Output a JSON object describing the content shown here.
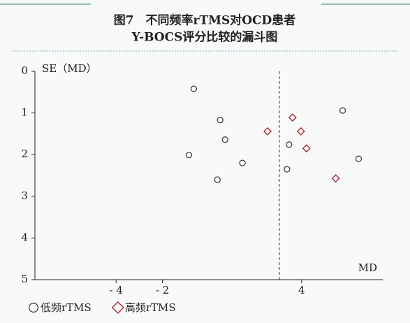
{
  "chart_data": {
    "type": "scatter",
    "title": "图7　不同频率rTMS对OCD患者",
    "subtitle": "Y-BOCS评分比较的漏斗图",
    "y_label": "SE（MD）",
    "x_label": "MD",
    "xlim": [
      -7.5,
      7.5
    ],
    "xticks": [
      {
        "value": -4,
        "label": "- 4"
      },
      {
        "value": -2,
        "label": "- 2"
      },
      4
    ],
    "ylim": [
      0,
      5
    ],
    "yticks": [
      0,
      1,
      2,
      3,
      4,
      5
    ],
    "y_reversed": true,
    "ref_line": 3.04,
    "series": [
      {
        "name": "低频rTMS",
        "marker": "circle",
        "color": "#333333",
        "x": [
          -0.65,
          0.49,
          5.77,
          0.7,
          -0.86,
          3.46,
          6.46,
          1.45,
          3.37,
          0.37
        ],
        "values": [
          0.42,
          1.17,
          0.94,
          1.64,
          2.01,
          1.76,
          2.1,
          2.2,
          2.35,
          2.6
        ]
      },
      {
        "name": "高频rTMS",
        "marker": "diamond",
        "color": "#b0283c",
        "x": [
          3.61,
          2.53,
          3.97,
          4.21,
          5.47
        ],
        "values": [
          1.11,
          1.44,
          1.44,
          1.85,
          2.57
        ]
      }
    ]
  }
}
